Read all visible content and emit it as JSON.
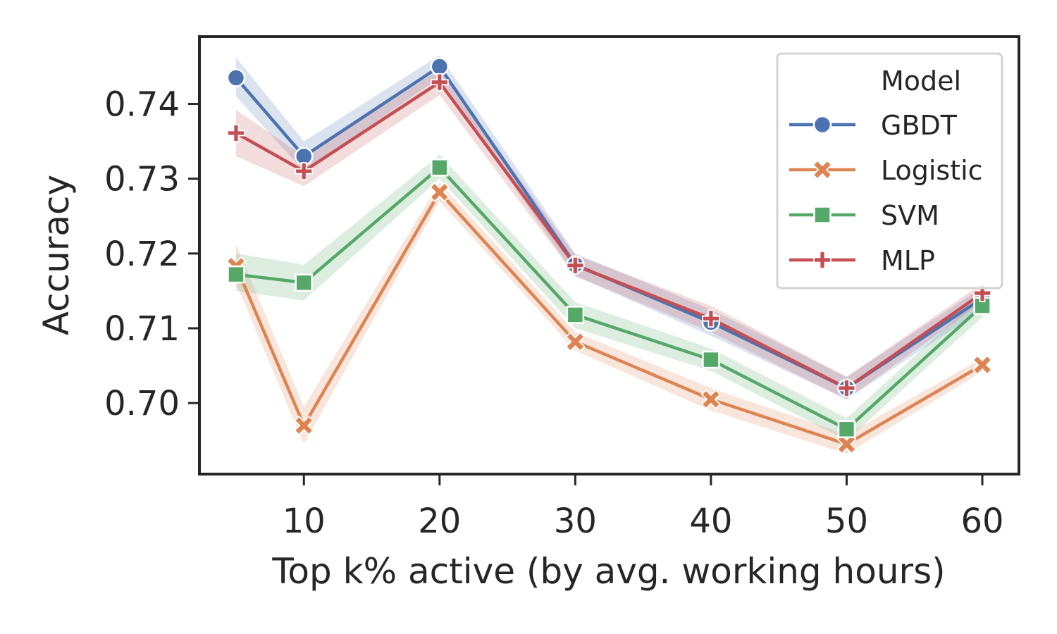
{
  "chart_data": {
    "type": "line",
    "title": "",
    "xlabel": "Top k% active (by avg. working hours)",
    "ylabel": "Accuracy",
    "x": [
      5,
      10,
      20,
      30,
      40,
      50,
      60
    ],
    "xlim": [
      2.3,
      62.7
    ],
    "ylim": [
      0.6905,
      0.749
    ],
    "xticks": [
      10,
      20,
      30,
      40,
      50,
      60
    ],
    "xtick_labels": [
      "10",
      "20",
      "30",
      "40",
      "50",
      "60"
    ],
    "yticks": [
      0.7,
      0.71,
      0.72,
      0.73,
      0.74
    ],
    "ytick_labels": [
      "0.70",
      "0.71",
      "0.72",
      "0.73",
      "0.74"
    ],
    "grid": false,
    "legend": {
      "title": "Model",
      "position": "top-right"
    },
    "series": [
      {
        "name": "GBDT",
        "color": "#4c72b0",
        "marker": "circle",
        "values": [
          0.7435,
          0.733,
          0.745,
          0.7185,
          0.7108,
          0.702,
          0.714
        ],
        "ci_lower": [
          0.741,
          0.731,
          0.7435,
          0.717,
          0.709,
          0.7005,
          0.7125
        ],
        "ci_upper": [
          0.7462,
          0.735,
          0.7465,
          0.72,
          0.7125,
          0.7035,
          0.7155
        ]
      },
      {
        "name": "Logistic",
        "color": "#dd8452",
        "marker": "x",
        "values": [
          0.7183,
          0.697,
          0.7282,
          0.7082,
          0.7005,
          0.6945,
          0.7051
        ],
        "ci_lower": [
          0.716,
          0.6945,
          0.727,
          0.707,
          0.699,
          0.6932,
          0.7042
        ],
        "ci_upper": [
          0.7212,
          0.6995,
          0.7295,
          0.7095,
          0.702,
          0.6958,
          0.706
        ]
      },
      {
        "name": "SVM",
        "color": "#55a868",
        "marker": "square",
        "values": [
          0.7172,
          0.7161,
          0.7315,
          0.7118,
          0.7058,
          0.6965,
          0.713
        ],
        "ci_lower": [
          0.715,
          0.7137,
          0.73,
          0.71,
          0.7043,
          0.695,
          0.7115
        ],
        "ci_upper": [
          0.72,
          0.7185,
          0.7332,
          0.7135,
          0.7073,
          0.698,
          0.7145
        ]
      },
      {
        "name": "MLP",
        "color": "#c44e52",
        "marker": "plus",
        "values": [
          0.7361,
          0.731,
          0.7429,
          0.7184,
          0.7113,
          0.702,
          0.7147
        ],
        "ci_lower": [
          0.733,
          0.729,
          0.7412,
          0.717,
          0.7095,
          0.7005,
          0.7135
        ],
        "ci_upper": [
          0.7392,
          0.733,
          0.7446,
          0.7198,
          0.713,
          0.7035,
          0.716
        ]
      }
    ]
  }
}
